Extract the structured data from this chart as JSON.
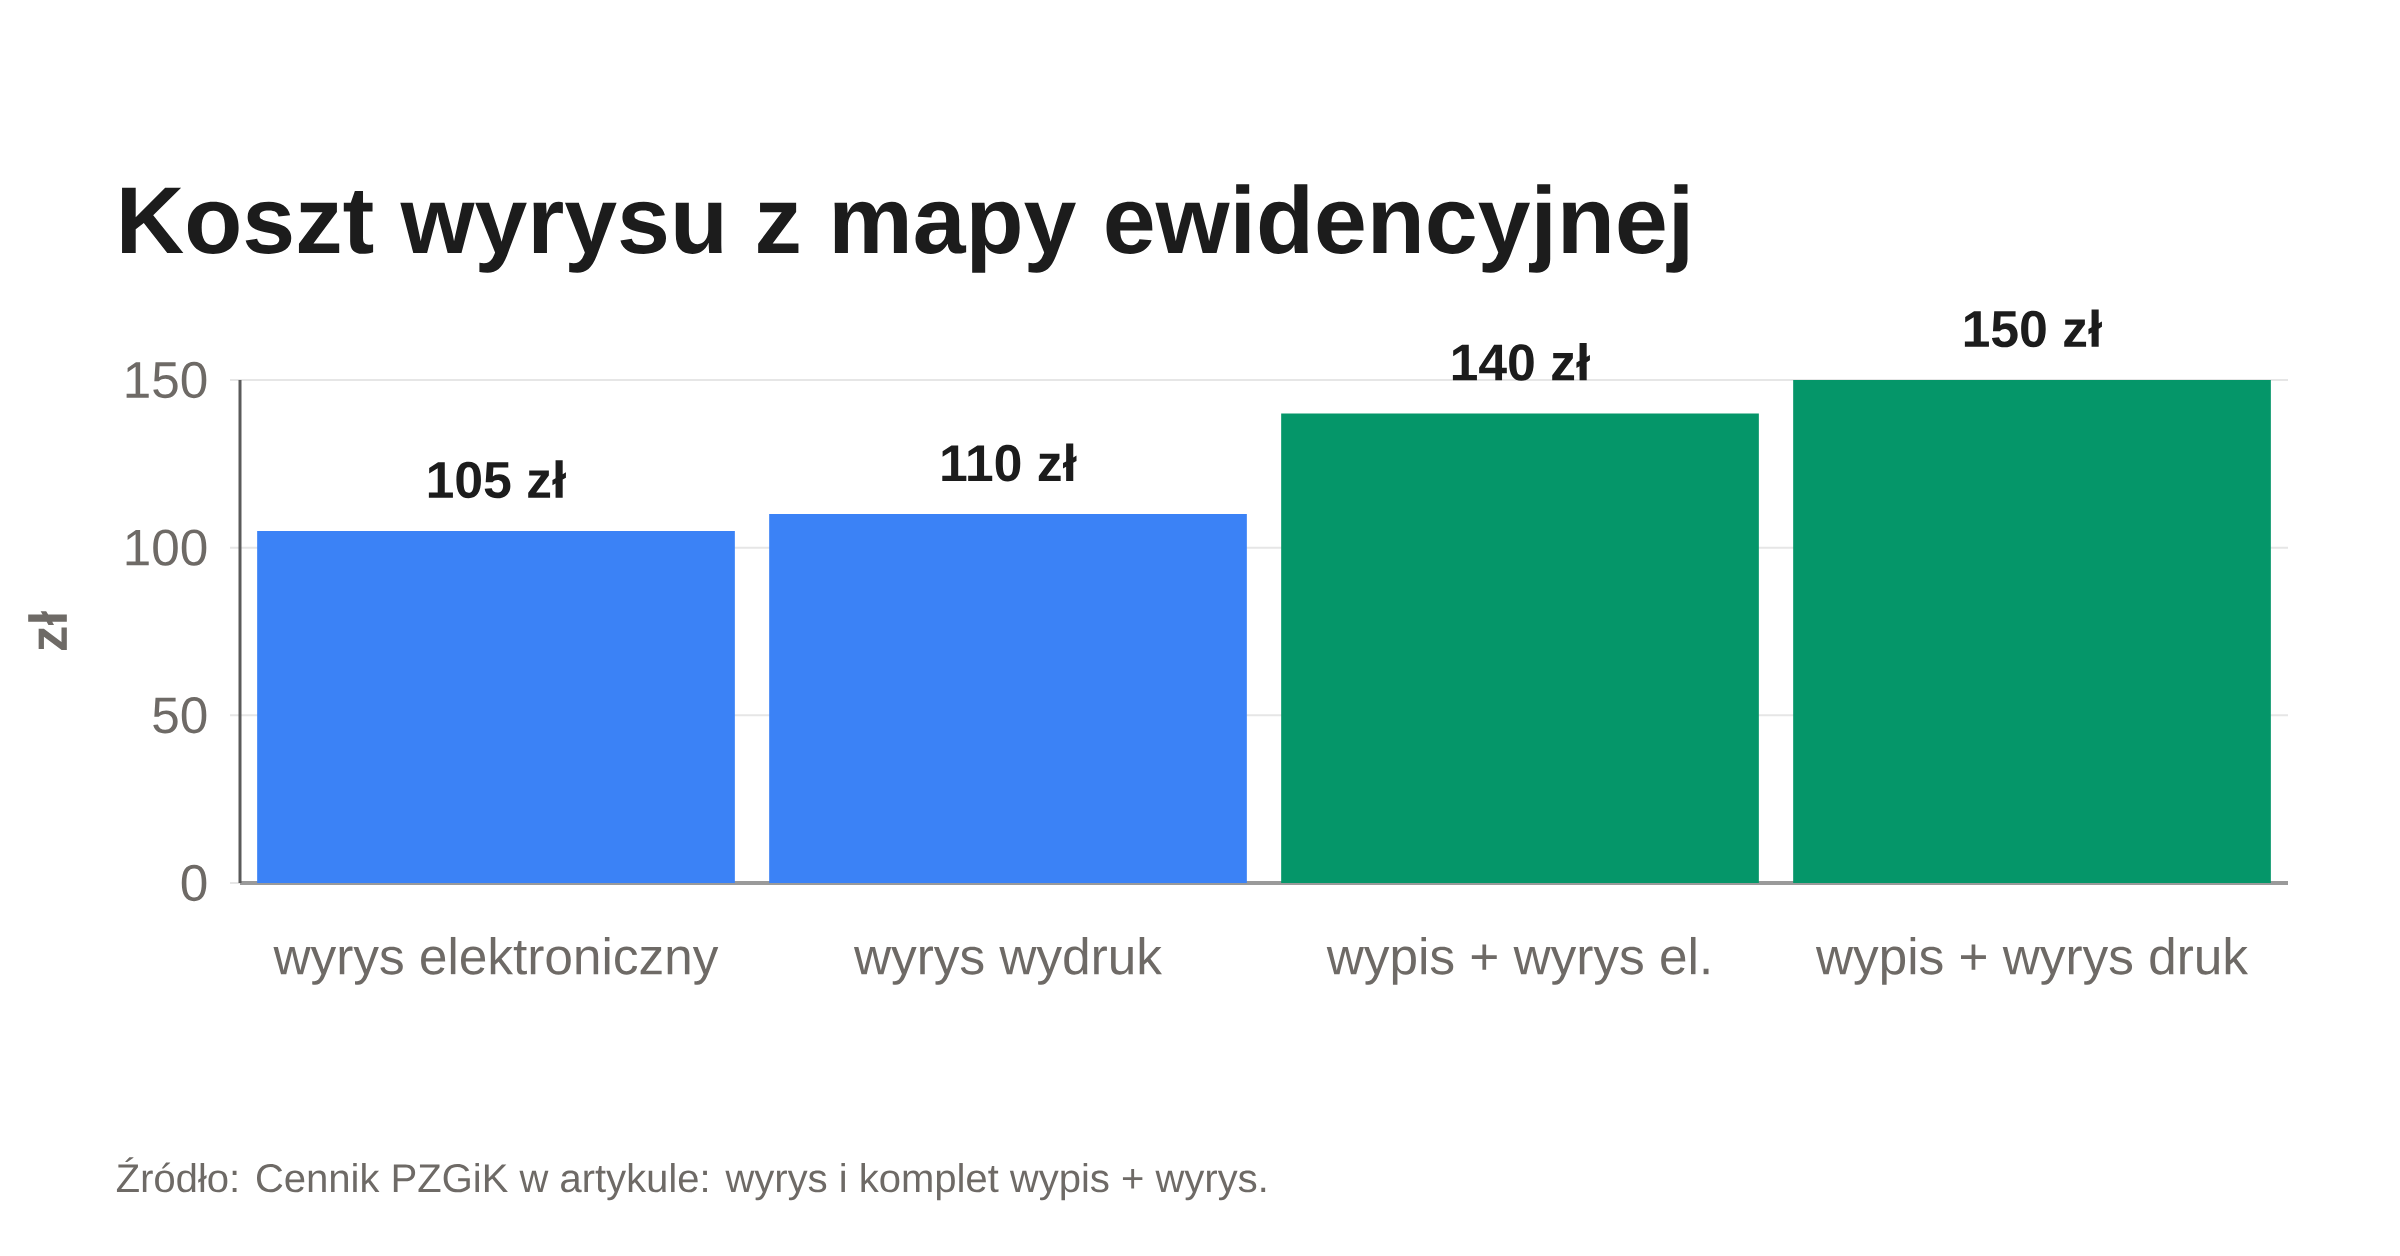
{
  "chart_data": {
    "type": "bar",
    "title": "Koszt wyrysu z mapy ewidencyjnej",
    "ylabel": "zł",
    "categories": [
      "wyrys elektroniczny",
      "wyrys wydruk",
      "wypis + wyrys el.",
      "wypis + wyrys druk"
    ],
    "values": [
      105,
      110,
      140,
      150
    ],
    "colors": [
      "#3b82f6",
      "#3b82f6",
      "#059669",
      "#059669"
    ],
    "value_labels": [
      "105 zł",
      "110 zł",
      "140 zł",
      "150 zł"
    ],
    "ylim": [
      0,
      150
    ],
    "yticks": [
      0,
      50,
      100,
      150
    ],
    "grid": "y",
    "annotations": [
      "Źródło: Cennik PZGiK w artykule: wyrys i komplet wypis + wyrys."
    ]
  }
}
